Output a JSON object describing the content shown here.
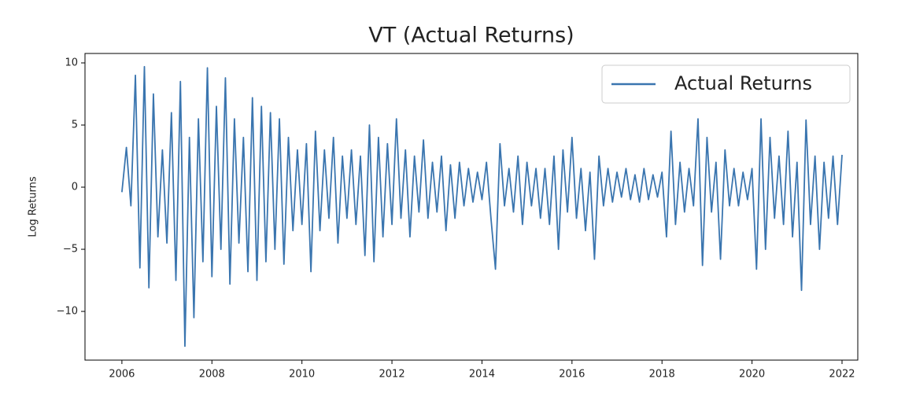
{
  "chart_data": {
    "type": "line",
    "title": "VT (Actual Returns)",
    "y_label": "Log Returns",
    "x": [
      2006,
      2006.1,
      2006.2,
      2006.3,
      2006.4,
      2006.5,
      2006.6,
      2006.7,
      2006.8,
      2006.9,
      2007,
      2007.1,
      2007.2,
      2007.3,
      2007.4,
      2007.5,
      2007.6,
      2007.7,
      2007.8,
      2007.9,
      2008,
      2008.1,
      2008.2,
      2008.3,
      2008.4,
      2008.5,
      2008.6,
      2008.7,
      2008.8,
      2008.9,
      2009,
      2009.1,
      2009.2,
      2009.3,
      2009.4,
      2009.5,
      2009.6,
      2009.7,
      2009.8,
      2009.9,
      2010,
      2010.1,
      2010.2,
      2010.3,
      2010.4,
      2010.5,
      2010.6,
      2010.7,
      2010.8,
      2010.9,
      2011,
      2011.1,
      2011.2,
      2011.3,
      2011.4,
      2011.5,
      2011.6,
      2011.7,
      2011.8,
      2011.9,
      2012,
      2012.1,
      2012.2,
      2012.3,
      2012.4,
      2012.5,
      2012.6,
      2012.7,
      2012.8,
      2012.9,
      2013,
      2013.1,
      2013.2,
      2013.3,
      2013.4,
      2013.5,
      2013.6,
      2013.7,
      2013.8,
      2013.9,
      2014,
      2014.1,
      2014.2,
      2014.3,
      2014.4,
      2014.5,
      2014.6,
      2014.7,
      2014.8,
      2014.9,
      2015,
      2015.1,
      2015.2,
      2015.3,
      2015.4,
      2015.5,
      2015.6,
      2015.7,
      2015.8,
      2015.9,
      2016,
      2016.1,
      2016.2,
      2016.3,
      2016.4,
      2016.5,
      2016.6,
      2016.7,
      2016.8,
      2016.9,
      2017,
      2017.1,
      2017.2,
      2017.3,
      2017.4,
      2017.5,
      2017.6,
      2017.7,
      2017.8,
      2017.9,
      2018,
      2018.1,
      2018.2,
      2018.3,
      2018.4,
      2018.5,
      2018.6,
      2018.7,
      2018.8,
      2018.9,
      2019,
      2019.1,
      2019.2,
      2019.3,
      2019.4,
      2019.5,
      2019.6,
      2019.7,
      2019.8,
      2019.9,
      2020,
      2020.1,
      2020.2,
      2020.3,
      2020.4,
      2020.5,
      2020.6,
      2020.7,
      2020.8,
      2020.9,
      2021,
      2021.1,
      2021.2,
      2021.3,
      2021.4,
      2021.5,
      2021.6,
      2021.7,
      2021.8,
      2021.9,
      2022
    ],
    "series": [
      {
        "name": "Actual Returns",
        "color": "#3a75af",
        "values": [
          -0.4,
          3.2,
          -1.5,
          9.0,
          -6.5,
          9.7,
          -8.1,
          7.5,
          -4.0,
          3.0,
          -4.5,
          6.0,
          -7.5,
          8.5,
          -12.8,
          4.0,
          -10.5,
          5.5,
          -6.0,
          9.6,
          -7.2,
          6.5,
          -5.0,
          8.8,
          -7.8,
          5.5,
          -4.5,
          4.0,
          -6.8,
          7.2,
          -7.5,
          6.5,
          -6.0,
          6.0,
          -5.0,
          5.5,
          -6.2,
          4.0,
          -3.5,
          3.0,
          -3.0,
          3.5,
          -6.8,
          4.5,
          -3.5,
          3.0,
          -2.5,
          4.0,
          -4.5,
          2.5,
          -2.5,
          3.0,
          -3.0,
          2.5,
          -5.5,
          5.0,
          -6.0,
          4.0,
          -4.0,
          3.5,
          -3.0,
          5.5,
          -2.5,
          3.0,
          -4.0,
          2.5,
          -2.0,
          3.8,
          -2.5,
          2.0,
          -2.0,
          2.5,
          -3.5,
          1.8,
          -2.5,
          2.0,
          -1.5,
          1.5,
          -1.2,
          1.2,
          -1.0,
          2.0,
          -2.5,
          -6.6,
          3.5,
          -1.5,
          1.5,
          -2.0,
          2.5,
          -3.0,
          2.0,
          -1.5,
          1.5,
          -2.5,
          1.5,
          -3.0,
          2.5,
          -5.0,
          3.0,
          -2.0,
          4.0,
          -2.5,
          1.5,
          -3.5,
          1.2,
          -5.8,
          2.5,
          -1.5,
          1.5,
          -1.2,
          1.2,
          -0.8,
          1.5,
          -1.0,
          1.0,
          -1.2,
          1.5,
          -1.0,
          1.0,
          -0.8,
          1.2,
          -4.0,
          4.5,
          -3.0,
          2.0,
          -2.0,
          1.5,
          -1.5,
          5.5,
          -6.3,
          4.0,
          -2.0,
          2.0,
          -5.8,
          3.0,
          -1.5,
          1.5,
          -1.5,
          1.2,
          -1.0,
          1.5,
          -6.6,
          5.5,
          -5.0,
          4.0,
          -2.5,
          2.5,
          -3.0,
          4.5,
          -4.0,
          2.0,
          -8.3,
          5.4,
          -3.0,
          2.5,
          -5.0,
          2.0,
          -2.5,
          2.5,
          -3.0,
          2.6
        ]
      }
    ],
    "xlim": [
      2005.18,
      2022.35
    ],
    "xticks": [
      2006,
      2008,
      2010,
      2012,
      2014,
      2016,
      2018,
      2020,
      2022
    ],
    "ylim": [
      -13.92,
      10.76
    ],
    "yticks": [
      {
        "value": -10,
        "label": "−10"
      },
      {
        "value": -5,
        "label": "−5"
      },
      0,
      5,
      10
    ],
    "legend": "upper right"
  }
}
